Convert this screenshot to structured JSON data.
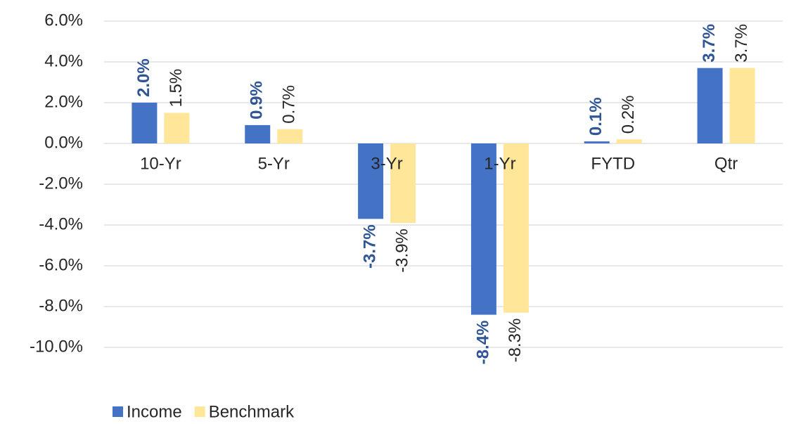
{
  "chart_data": {
    "type": "bar",
    "categories": [
      "10-Yr",
      "5-Yr",
      "3-Yr",
      "1-Yr",
      "FYTD",
      "Qtr"
    ],
    "series": [
      {
        "name": "Income",
        "color": "#4472c4",
        "label_color": "#2f5597",
        "label_bold": true,
        "values": [
          2.0,
          0.9,
          -3.7,
          -8.4,
          0.1,
          3.7
        ],
        "value_labels": [
          "2.0%",
          "0.9%",
          "-3.7%",
          "-8.4%",
          "0.1%",
          "3.7%"
        ]
      },
      {
        "name": "Benchmark",
        "color": "#ffe699",
        "label_color": "#262626",
        "label_bold": false,
        "values": [
          1.5,
          0.7,
          -3.9,
          -8.3,
          0.2,
          3.7
        ],
        "value_labels": [
          "1.5%",
          "0.7%",
          "-3.9%",
          "-8.3%",
          "0.2%",
          "3.7%"
        ]
      }
    ],
    "ylim": [
      -10,
      6
    ],
    "yticks": [
      {
        "value": 6,
        "label": "6.0%"
      },
      {
        "value": 4,
        "label": "4.0%"
      },
      {
        "value": 2,
        "label": "2.0%"
      },
      {
        "value": 0,
        "label": "0.0%"
      },
      {
        "value": -2,
        "label": "-2.0%"
      },
      {
        "value": -4,
        "label": "-4.0%"
      },
      {
        "value": -6,
        "label": "-6.0%"
      },
      {
        "value": -8,
        "label": "-8.0%"
      },
      {
        "value": -10,
        "label": "-10.0%"
      }
    ],
    "grid": true,
    "legend": "bottom-left"
  }
}
